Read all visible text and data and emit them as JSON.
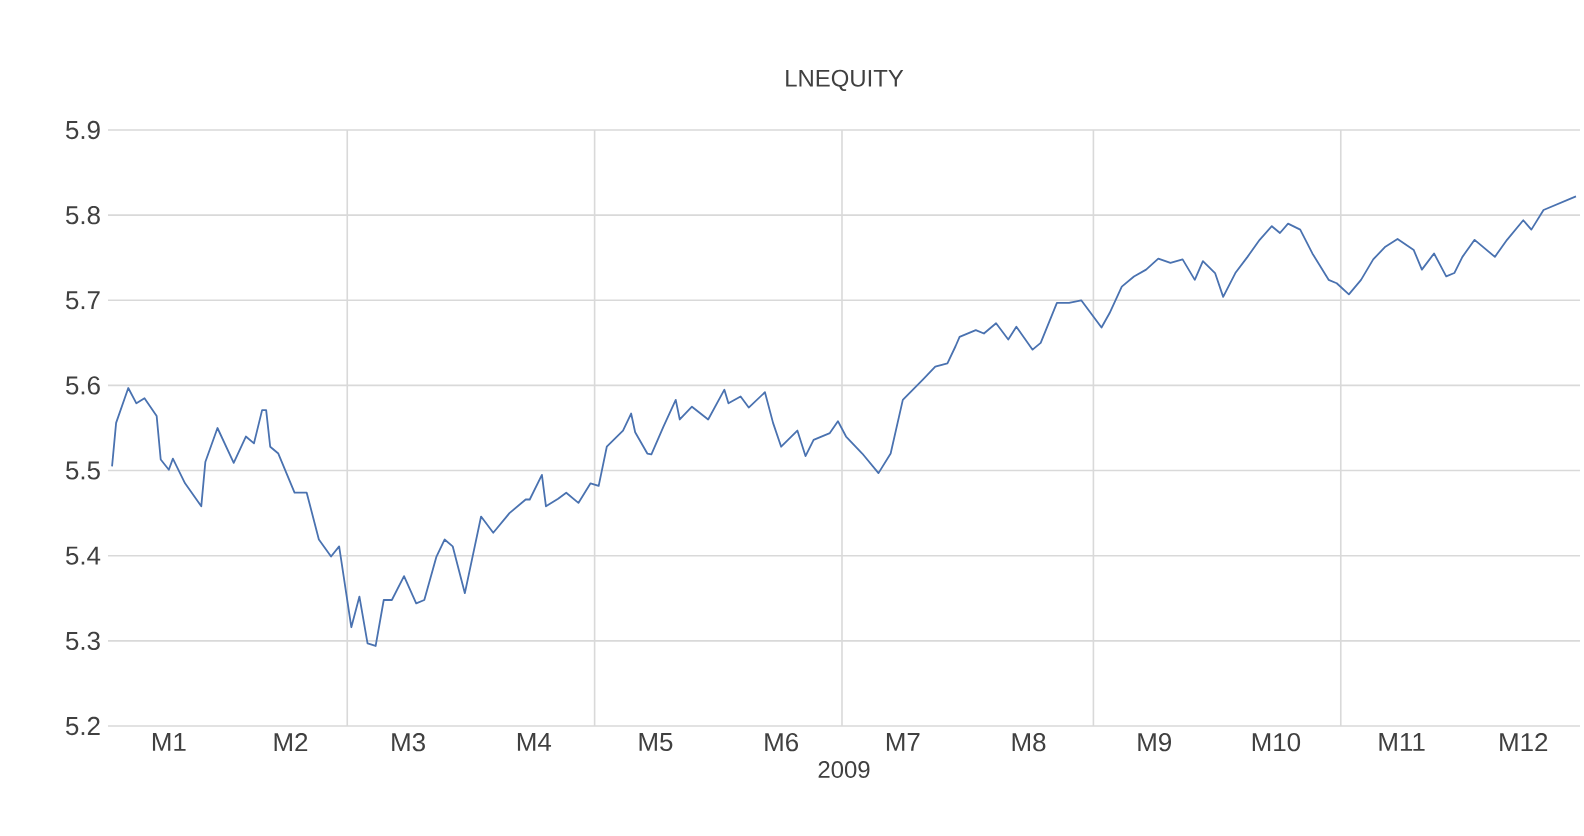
{
  "chart_data": {
    "type": "line",
    "title": "LNEQUITY",
    "xlabel": "2009",
    "color": "#4a72b0",
    "x": [
      "2009-01-02",
      "2009-01-03",
      "2009-01-06",
      "2009-01-08",
      "2009-01-10",
      "2009-01-13",
      "2009-01-14",
      "2009-01-16",
      "2009-01-17",
      "2009-01-20",
      "2009-01-24",
      "2009-01-25",
      "2009-01-28",
      "2009-02-01",
      "2009-02-04",
      "2009-02-06",
      "2009-02-08",
      "2009-02-09",
      "2009-02-10",
      "2009-02-12",
      "2009-02-16",
      "2009-02-19",
      "2009-02-22",
      "2009-02-25",
      "2009-02-27",
      "2009-03-02",
      "2009-03-04",
      "2009-03-06",
      "2009-03-08",
      "2009-03-10",
      "2009-03-12",
      "2009-03-15",
      "2009-03-18",
      "2009-03-20",
      "2009-03-23",
      "2009-03-25",
      "2009-03-27",
      "2009-03-30",
      "2009-04-03",
      "2009-04-06",
      "2009-04-10",
      "2009-04-14",
      "2009-04-15",
      "2009-04-18",
      "2009-04-19",
      "2009-04-22",
      "2009-04-24",
      "2009-04-27",
      "2009-04-30",
      "2009-05-02",
      "2009-05-04",
      "2009-05-08",
      "2009-05-10",
      "2009-05-11",
      "2009-05-14",
      "2009-05-15",
      "2009-05-18",
      "2009-05-21",
      "2009-05-22",
      "2009-05-25",
      "2009-05-29",
      "2009-06-02",
      "2009-06-03",
      "2009-06-06",
      "2009-06-08",
      "2009-06-12",
      "2009-06-14",
      "2009-06-16",
      "2009-06-20",
      "2009-06-22",
      "2009-06-24",
      "2009-06-28",
      "2009-06-30",
      "2009-07-02",
      "2009-07-06",
      "2009-07-10",
      "2009-07-13",
      "2009-07-16",
      "2009-07-21",
      "2009-07-24",
      "2009-07-27",
      "2009-07-29",
      "2009-07-30",
      "2009-08-03",
      "2009-08-05",
      "2009-08-08",
      "2009-08-11",
      "2009-08-13",
      "2009-08-17",
      "2009-08-19",
      "2009-08-23",
      "2009-08-26",
      "2009-08-29",
      "2009-09-03",
      "2009-09-05",
      "2009-09-08",
      "2009-09-11",
      "2009-09-14",
      "2009-09-17",
      "2009-09-20",
      "2009-09-23",
      "2009-09-26",
      "2009-09-28",
      "2009-10-01",
      "2009-10-03",
      "2009-10-06",
      "2009-10-09",
      "2009-10-12",
      "2009-10-15",
      "2009-10-17",
      "2009-10-19",
      "2009-10-22",
      "2009-10-25",
      "2009-10-29",
      "2009-10-31",
      "2009-11-03",
      "2009-11-06",
      "2009-11-09",
      "2009-11-12",
      "2009-11-15",
      "2009-11-19",
      "2009-11-21",
      "2009-11-24",
      "2009-11-27",
      "2009-11-29",
      "2009-12-01",
      "2009-12-04",
      "2009-12-09",
      "2009-12-12",
      "2009-12-16",
      "2009-12-18",
      "2009-12-21",
      "2009-12-25",
      "2009-12-29"
    ],
    "values": [
      5.505,
      5.556,
      5.597,
      5.579,
      5.585,
      5.564,
      5.513,
      5.501,
      5.514,
      5.485,
      5.458,
      5.51,
      5.55,
      5.509,
      5.54,
      5.532,
      5.571,
      5.571,
      5.528,
      5.52,
      5.474,
      5.474,
      5.419,
      5.399,
      5.411,
      5.316,
      5.352,
      5.297,
      5.294,
      5.348,
      5.348,
      5.376,
      5.344,
      5.348,
      5.399,
      5.419,
      5.411,
      5.356,
      5.446,
      5.427,
      5.45,
      5.466,
      5.466,
      5.495,
      5.458,
      5.467,
      5.474,
      5.462,
      5.485,
      5.482,
      5.528,
      5.547,
      5.567,
      5.545,
      5.52,
      5.519,
      5.552,
      5.583,
      5.56,
      5.575,
      5.56,
      5.595,
      5.579,
      5.587,
      5.574,
      5.592,
      5.556,
      5.528,
      5.547,
      5.517,
      5.536,
      5.544,
      5.558,
      5.54,
      5.52,
      5.497,
      5.52,
      5.583,
      5.607,
      5.622,
      5.626,
      5.646,
      5.657,
      5.665,
      5.661,
      5.673,
      5.654,
      5.669,
      5.642,
      5.65,
      5.697,
      5.697,
      5.7,
      5.668,
      5.685,
      5.716,
      5.728,
      5.736,
      5.749,
      5.744,
      5.748,
      5.724,
      5.746,
      5.732,
      5.704,
      5.732,
      5.751,
      5.771,
      5.787,
      5.779,
      5.79,
      5.783,
      5.755,
      5.724,
      5.72,
      5.707,
      5.724,
      5.748,
      5.763,
      5.772,
      5.759,
      5.736,
      5.755,
      5.728,
      5.732,
      5.751,
      5.771,
      5.751,
      5.771,
      5.794,
      5.783,
      5.806,
      5.814,
      5.822
    ],
    "xlim": [
      "2009-01-01",
      "2009-12-30"
    ],
    "ylim": [
      5.2,
      5.9
    ],
    "xticks": [
      {
        "value": "2009-01-16",
        "label": "M1"
      },
      {
        "value": "2009-02-15",
        "label": "M2"
      },
      {
        "value": "2009-03-16",
        "label": "M3"
      },
      {
        "value": "2009-04-16",
        "label": "M4"
      },
      {
        "value": "2009-05-16",
        "label": "M5"
      },
      {
        "value": "2009-06-16",
        "label": "M6"
      },
      {
        "value": "2009-07-16",
        "label": "M7"
      },
      {
        "value": "2009-08-16",
        "label": "M8"
      },
      {
        "value": "2009-09-16",
        "label": "M9"
      },
      {
        "value": "2009-10-16",
        "label": "M10"
      },
      {
        "value": "2009-11-16",
        "label": "M11"
      },
      {
        "value": "2009-12-16",
        "label": "M12"
      }
    ],
    "yticks": [
      5.2,
      5.3,
      5.4,
      5.5,
      5.6,
      5.7,
      5.8,
      5.9
    ],
    "grid": "y",
    "ref_lines": [
      {
        "axis": "x",
        "value": "2009-03-01",
        "color": "#d9d9d9"
      },
      {
        "axis": "x",
        "value": "2009-05-01",
        "color": "#d9d9d9"
      },
      {
        "axis": "x",
        "value": "2009-07-01",
        "color": "#d9d9d9"
      },
      {
        "axis": "x",
        "value": "2009-09-01",
        "color": "#d9d9d9"
      },
      {
        "axis": "x",
        "value": "2009-11-01",
        "color": "#d9d9d9"
      }
    ]
  }
}
